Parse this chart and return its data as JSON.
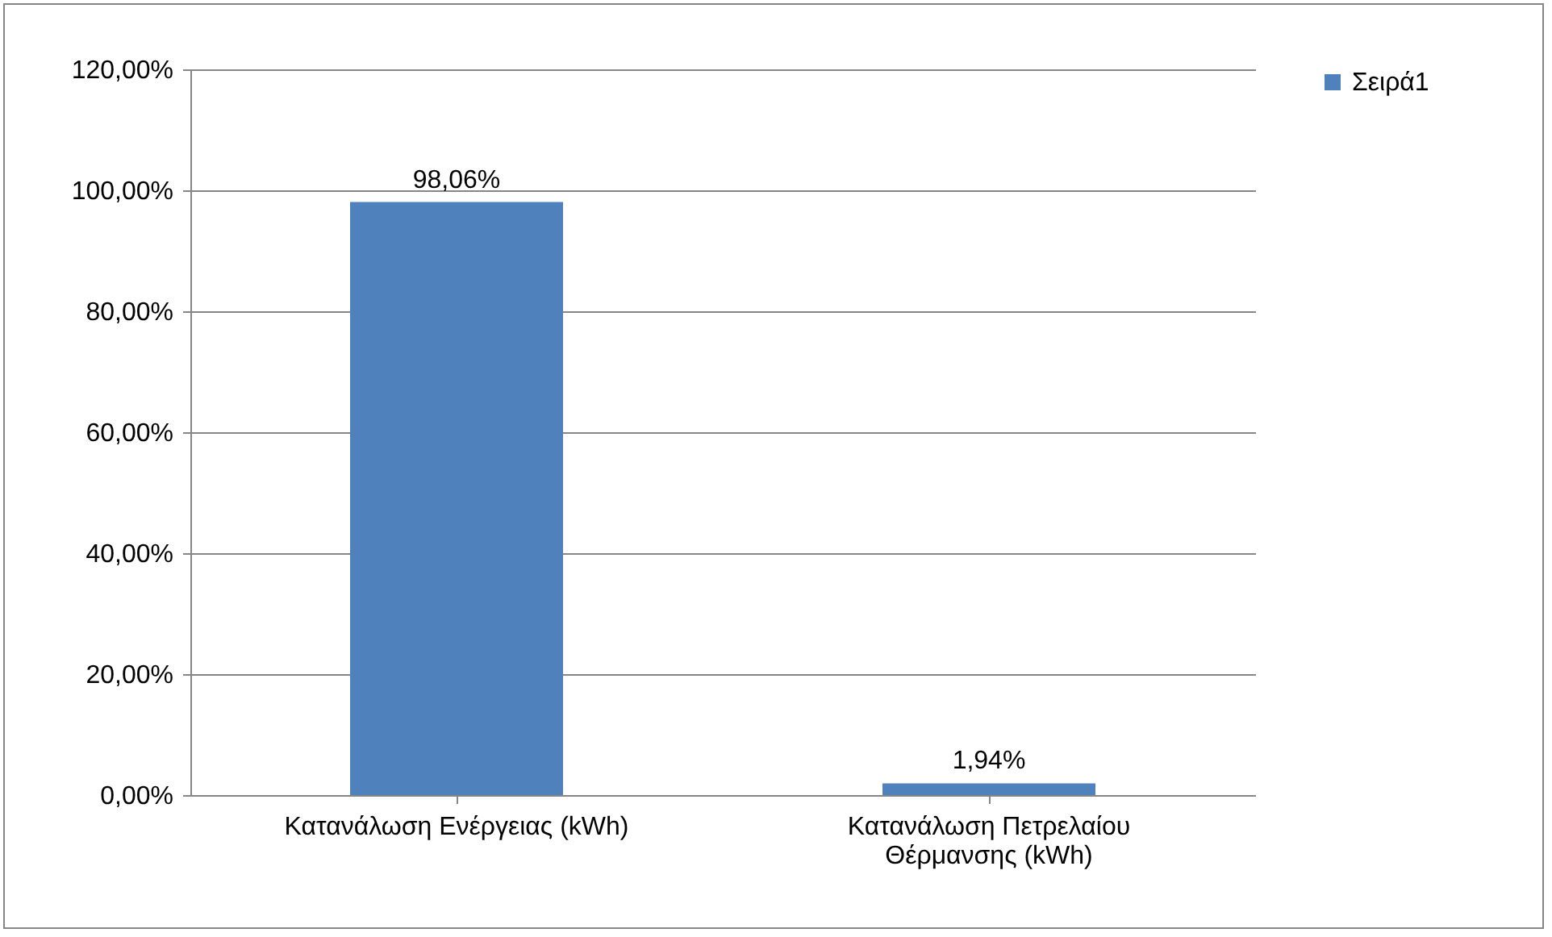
{
  "chart_data": {
    "type": "bar",
    "categories": [
      "Κατανάλωση Ενέργειας (kWh)",
      "Κατανάλωση Πετρελαίου Θέρμανσης (kWh)"
    ],
    "series": [
      {
        "name": "Σειρά1",
        "color": "#4f81bd",
        "values": [
          98.06,
          1.94
        ],
        "value_labels": [
          "98,06%",
          "1,94%"
        ]
      }
    ],
    "ylim": [
      0,
      120
    ],
    "yticks": [
      {
        "value": 0,
        "label": "0,00%"
      },
      {
        "value": 20,
        "label": "20,00%"
      },
      {
        "value": 40,
        "label": "40,00%"
      },
      {
        "value": 60,
        "label": "60,00%"
      },
      {
        "value": 80,
        "label": "80,00%"
      },
      {
        "value": 100,
        "label": "100,00%"
      },
      {
        "value": 120,
        "label": "120,00%"
      }
    ],
    "grid": "y",
    "legend": "right"
  }
}
